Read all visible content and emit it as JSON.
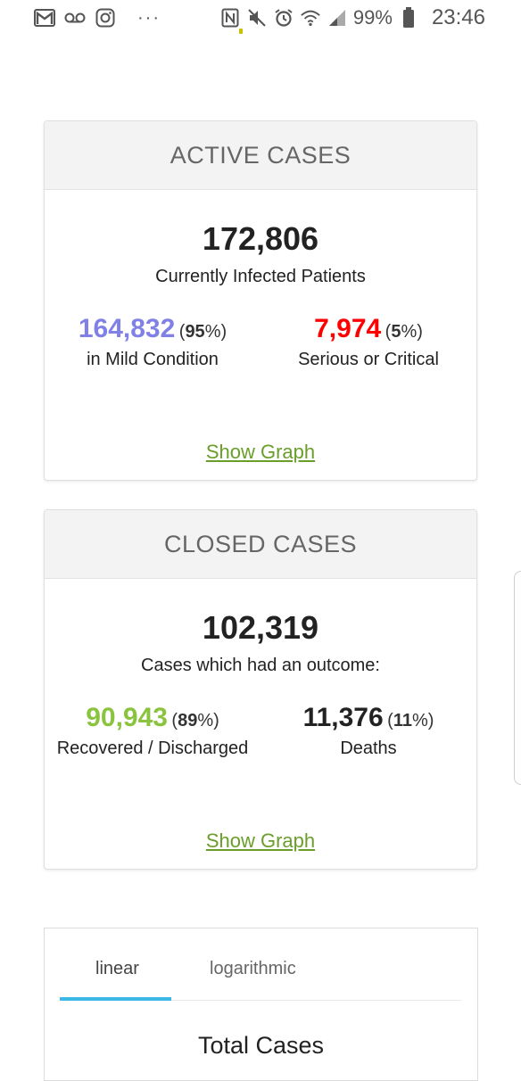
{
  "status_bar": {
    "left_icons": [
      "gmail-icon",
      "voicemail-icon",
      "instagram-icon"
    ],
    "more": "···",
    "right_icons": [
      "nfc-icon",
      "mute-icon",
      "alarm-icon",
      "wifi-icon",
      "signal-icon",
      "battery-icon"
    ],
    "battery": "99%",
    "time": "23:46"
  },
  "active_cases": {
    "header": "ACTIVE CASES",
    "total": "172,806",
    "subtitle": "Currently Infected Patients",
    "mild": {
      "value": "164,832",
      "pct": "95",
      "label": "in Mild Condition",
      "color": "#8080e6"
    },
    "serious": {
      "value": "7,974",
      "pct": "5",
      "label": "Serious or Critical",
      "color": "#ff0000"
    },
    "show_graph": "Show Graph"
  },
  "closed_cases": {
    "header": "CLOSED CASES",
    "total": "102,319",
    "subtitle": "Cases which had an outcome:",
    "recovered": {
      "value": "90,943",
      "pct": "89",
      "label": "Recovered / Discharged",
      "color": "#8ac43f"
    },
    "deaths": {
      "value": "11,376",
      "pct": "11",
      "label": "Deaths",
      "color": "#222222"
    },
    "show_graph": "Show Graph"
  },
  "chart_section": {
    "tabs": [
      {
        "label": "linear",
        "active": true
      },
      {
        "label": "logarithmic",
        "active": false
      }
    ],
    "title": "Total Cases"
  }
}
